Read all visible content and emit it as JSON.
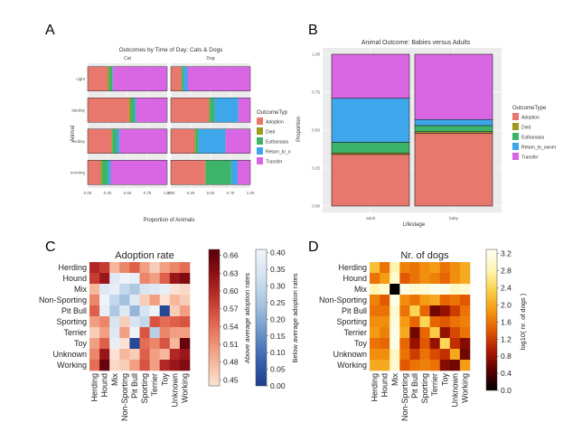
{
  "panel_letters": [
    "A",
    "B",
    "C",
    "D"
  ],
  "colors": {
    "Adoption": "#E8776D",
    "Died": "#9E9A1A",
    "Euthanasia": "#3CB56A",
    "Return_to_owner": "#3EA6EA",
    "Transfer": "#D966E3"
  },
  "chart_data": [
    {
      "panel": "A",
      "type": "bar",
      "orientation": "horizontal",
      "stacked": true,
      "title": "Outcomes by Time of Day: Cats & Dogs",
      "xlabel": "Proportion of Animals",
      "ylabel": "Animal",
      "xlim": [
        0,
        1
      ],
      "x_ticks": [
        "0.00",
        "0.25",
        "0.50",
        "0.75",
        "1.00"
      ],
      "facets": [
        "Cat",
        "Dog"
      ],
      "categories": [
        "night",
        "lateday",
        "midday",
        "morning"
      ],
      "legend_title": "OutcomeTyp",
      "legend_entries": [
        "Adoption",
        "Died",
        "Euthanasia",
        "Return_to_o",
        "Transfer"
      ],
      "legend": "right",
      "grid": true,
      "series_keys": [
        "Adoption",
        "Died",
        "Euthanasia",
        "Return_to_owner",
        "Transfer"
      ],
      "data": {
        "Cat": {
          "night": [
            0.25,
            0.02,
            0.04,
            0.01,
            0.68
          ],
          "lateday": [
            0.52,
            0.02,
            0.05,
            0.02,
            0.39
          ],
          "midday": [
            0.3,
            0.01,
            0.06,
            0.03,
            0.6
          ],
          "morning": [
            0.16,
            0.02,
            0.08,
            0.03,
            0.71
          ]
        },
        "Dog": {
          "night": [
            0.13,
            0.01,
            0.02,
            0.05,
            0.79
          ],
          "lateday": [
            0.48,
            0.01,
            0.06,
            0.3,
            0.15
          ],
          "midday": [
            0.3,
            0.01,
            0.04,
            0.34,
            0.31
          ],
          "morning": [
            0.43,
            0.01,
            0.32,
            0.08,
            0.16
          ]
        }
      }
    },
    {
      "panel": "B",
      "type": "bar",
      "stacked": true,
      "title": "Animal Outcome: Babies versus Adults",
      "xlabel": "Lifestage",
      "ylabel": "Proportion",
      "ylim": [
        0,
        1
      ],
      "y_ticks": [
        "0.00",
        "0.25",
        "0.50",
        "0.75",
        "1.00"
      ],
      "categories": [
        "adult",
        "baby"
      ],
      "legend_title": "OutcomeType",
      "legend_entries": [
        "Adoption",
        "Died",
        "Euthanasia",
        "Return_to_owner",
        "Transfer"
      ],
      "legend": "right",
      "grid": true,
      "series": [
        {
          "name": "Adoption",
          "values": [
            0.34,
            0.48
          ]
        },
        {
          "name": "Died",
          "values": [
            0.01,
            0.01
          ]
        },
        {
          "name": "Euthanasia",
          "values": [
            0.07,
            0.04
          ]
        },
        {
          "name": "Return_to_owner",
          "values": [
            0.29,
            0.04
          ]
        },
        {
          "name": "Transfer",
          "values": [
            0.29,
            0.43
          ]
        }
      ]
    },
    {
      "panel": "C",
      "type": "heatmap",
      "title": "Adoption rate",
      "rows": [
        "Herding",
        "Hound",
        "Mix",
        "Non-Sporting",
        "Pit Bull",
        "Sporting",
        "Terrier",
        "Toy",
        "Unknown",
        "Working"
      ],
      "columns": [
        "Herding",
        "Hound",
        "Mix",
        "Non-Sporting",
        "Pit Bull",
        "Sporting",
        "Terrier",
        "Toy",
        "Unknown",
        "Working"
      ],
      "colorbars": [
        {
          "label": "Above average adoption rates",
          "range": [
            0.44,
            0.67
          ],
          "ticks": [
            "0.45",
            "0.48",
            "0.51",
            "0.54",
            "0.57",
            "0.60",
            "0.63",
            "0.66"
          ]
        },
        {
          "label": "Below average adoption rates",
          "range": [
            0.0,
            0.41
          ],
          "ticks": [
            "0.00",
            "0.05",
            "0.10",
            "0.15",
            "0.20",
            "0.25",
            "0.30",
            "0.35",
            "0.40"
          ]
        }
      ],
      "values": [
        [
          0.6,
          0.58,
          0.48,
          0.52,
          0.55,
          0.5,
          0.46,
          0.5,
          0.52,
          0.54
        ],
        [
          0.58,
          0.62,
          0.36,
          0.4,
          0.38,
          0.52,
          0.5,
          0.55,
          0.62,
          0.64
        ],
        [
          0.48,
          0.36,
          0.38,
          0.3,
          0.26,
          0.34,
          0.36,
          0.38,
          0.44,
          0.45
        ],
        [
          0.52,
          0.4,
          0.3,
          0.24,
          0.36,
          0.46,
          0.5,
          0.44,
          0.48,
          0.46
        ],
        [
          0.55,
          0.38,
          0.26,
          0.36,
          0.22,
          0.34,
          0.4,
          0.02,
          0.46,
          0.5
        ],
        [
          0.5,
          0.52,
          0.34,
          0.46,
          0.34,
          0.3,
          0.56,
          0.54,
          0.55,
          0.56
        ],
        [
          0.46,
          0.5,
          0.36,
          0.5,
          0.4,
          0.56,
          0.28,
          0.52,
          0.5,
          0.5
        ],
        [
          0.5,
          0.55,
          0.38,
          0.44,
          0.02,
          0.54,
          0.52,
          0.56,
          0.48,
          0.66
        ],
        [
          0.52,
          0.62,
          0.44,
          0.48,
          0.46,
          0.55,
          0.5,
          0.48,
          0.6,
          0.62
        ],
        [
          0.54,
          0.66,
          0.45,
          0.46,
          0.5,
          0.56,
          0.5,
          0.6,
          0.62,
          0.64
        ]
      ]
    },
    {
      "panel": "D",
      "type": "heatmap",
      "title": "Nr. of dogs",
      "rows": [
        "Herding",
        "Hound",
        "Mix",
        "Non-Sporting",
        "Pit Bull",
        "Sporting",
        "Terrier",
        "Toy",
        "Unknown",
        "Working"
      ],
      "columns": [
        "Herding",
        "Hound",
        "Mix",
        "Non-Sporting",
        "Pit Bull",
        "Sporting",
        "Terrier",
        "Toy",
        "Unknown",
        "Working"
      ],
      "colorbar": {
        "label": "log10( nr. of dogs )",
        "range": [
          0.0,
          3.3
        ],
        "ticks": [
          "0.0",
          "0.4",
          "0.8",
          "1.2",
          "1.6",
          "2.0",
          "2.4",
          "2.8",
          "3.2"
        ]
      },
      "values": [
        [
          2.2,
          1.6,
          2.8,
          1.7,
          1.6,
          1.8,
          1.9,
          1.6,
          1.8,
          2.0
        ],
        [
          1.6,
          1.9,
          3.0,
          1.4,
          1.6,
          1.8,
          1.7,
          1.5,
          1.8,
          2.0
        ],
        [
          2.8,
          3.0,
          0.0,
          3.2,
          3.0,
          3.1,
          3.2,
          3.2,
          2.9,
          3.0
        ],
        [
          1.7,
          1.4,
          3.2,
          1.8,
          1.6,
          1.9,
          2.0,
          1.5,
          1.6,
          1.4
        ],
        [
          1.6,
          1.6,
          3.0,
          1.6,
          2.4,
          1.5,
          0.6,
          0.8,
          1.2,
          1.6
        ],
        [
          1.8,
          1.8,
          3.1,
          1.9,
          1.5,
          2.4,
          1.5,
          1.4,
          1.6,
          1.7
        ],
        [
          1.9,
          1.7,
          3.2,
          2.0,
          0.6,
          1.5,
          2.3,
          0.8,
          1.3,
          1.6
        ],
        [
          1.6,
          1.5,
          3.2,
          1.5,
          0.8,
          1.4,
          0.8,
          2.4,
          1.1,
          0.7
        ],
        [
          1.8,
          1.8,
          2.9,
          1.6,
          1.2,
          1.6,
          1.3,
          1.1,
          2.0,
          0.6
        ],
        [
          2.0,
          2.0,
          3.0,
          1.4,
          1.6,
          1.7,
          1.6,
          0.7,
          0.6,
          1.9
        ]
      ]
    }
  ]
}
